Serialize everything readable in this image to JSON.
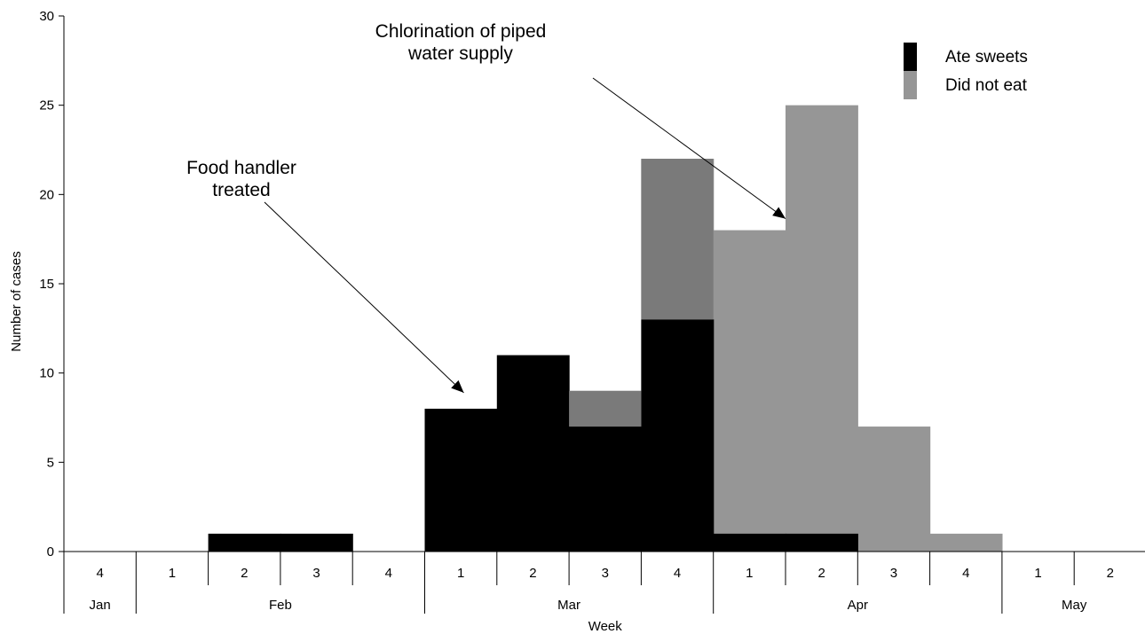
{
  "chart_data": {
    "type": "bar",
    "stacked": false,
    "overlapping": true,
    "xlabel": "Week",
    "ylabel": "Number of cases",
    "ylim": [
      0,
      30
    ],
    "yticks": [
      0,
      5,
      10,
      15,
      20,
      25,
      30
    ],
    "weeks": [
      "4",
      "1",
      "2",
      "3",
      "4",
      "1",
      "2",
      "3",
      "4",
      "1",
      "2",
      "3",
      "4",
      "1",
      "2"
    ],
    "months": [
      {
        "label": "Jan",
        "span": 1
      },
      {
        "label": "Feb",
        "span": 4
      },
      {
        "label": "Mar",
        "span": 4
      },
      {
        "label": "Apr",
        "span": 4
      },
      {
        "label": "May",
        "span": 2
      }
    ],
    "series": [
      {
        "name": "Did not eat",
        "color": "#969696",
        "values": [
          0,
          0,
          0,
          0,
          0,
          0,
          0,
          9,
          22,
          18,
          25,
          7,
          1,
          0,
          0
        ]
      },
      {
        "name": "Ate sweets",
        "color": "#000000",
        "values": [
          0,
          0,
          1,
          1,
          0,
          8,
          11,
          7,
          13,
          1,
          1,
          0,
          0,
          0,
          0
        ]
      }
    ],
    "annotations": [
      {
        "lines": [
          "Food handler",
          "treated"
        ],
        "week_index": 5,
        "value": 8
      },
      {
        "lines": [
          "Chlorination of piped",
          "water supply"
        ],
        "week_index": 10,
        "value": 18
      }
    ],
    "legend": {
      "placement": "top-right"
    },
    "grid": false
  }
}
